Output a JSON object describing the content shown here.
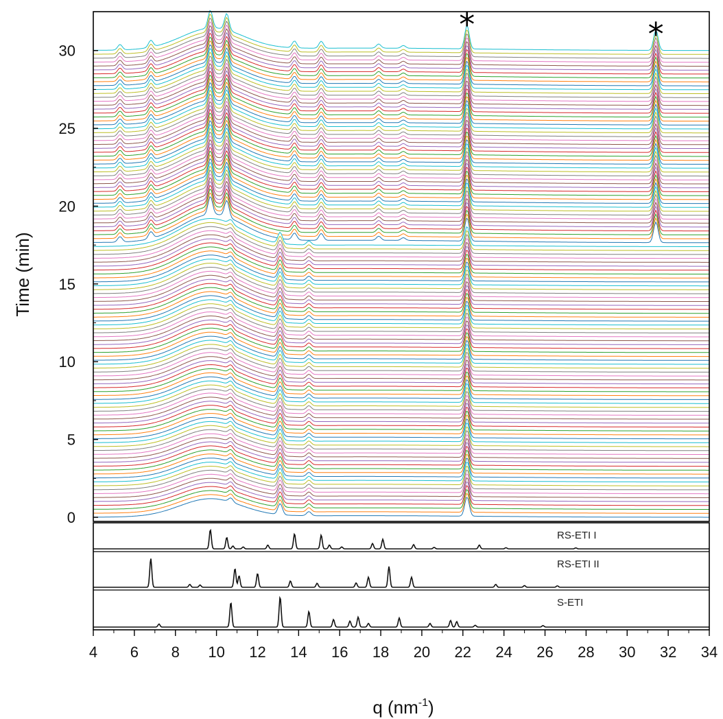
{
  "chart_data": {
    "type": "line",
    "subtype": "waterfall time-resolved diffraction patterns with reference patterns",
    "xlabel": "q (nm",
    "xlabel_superscript": "-1",
    "xlabel_suffix": ")",
    "ylabel": "Time (min)",
    "xlim": [
      4,
      34
    ],
    "ylim": [
      0,
      32.5
    ],
    "xticks": [
      4,
      6,
      8,
      10,
      12,
      14,
      16,
      18,
      20,
      22,
      24,
      26,
      28,
      30,
      32,
      34
    ],
    "yticks": [
      0,
      5,
      10,
      15,
      20,
      25,
      30
    ],
    "grid": false,
    "annotations": [
      {
        "text": "*",
        "q": 22.2
      },
      {
        "text": "*",
        "q": 31.4
      }
    ],
    "trace_colors": [
      "#1f77b4",
      "#ff7f0e",
      "#2ca02c",
      "#d62728",
      "#9467bd",
      "#8c564b",
      "#e377c2",
      "#7f7f7f",
      "#bcbd22",
      "#17becf"
    ],
    "waterfall": {
      "time_start": 0,
      "time_end": 30,
      "trace_count": 120,
      "transition_time": 17.5,
      "phase_before": {
        "halo_center_q": 9.7,
        "peaks_q": [
          10.7,
          13.1,
          14.5,
          22.2
        ]
      },
      "phase_after": {
        "halo_center_q": 9.8,
        "peaks_q": [
          5.3,
          6.8,
          9.7,
          10.5,
          13.8,
          15.1,
          17.9,
          19.1,
          22.2,
          31.4
        ]
      }
    },
    "reference_patterns": [
      {
        "name": "RS-ETI I",
        "peaks": [
          {
            "q": 9.7,
            "intensity": 1.0
          },
          {
            "q": 10.5,
            "intensity": 0.6
          },
          {
            "q": 10.8,
            "intensity": 0.15
          },
          {
            "q": 11.3,
            "intensity": 0.1
          },
          {
            "q": 12.5,
            "intensity": 0.2
          },
          {
            "q": 13.8,
            "intensity": 0.78
          },
          {
            "q": 15.1,
            "intensity": 0.72
          },
          {
            "q": 15.5,
            "intensity": 0.2
          },
          {
            "q": 16.1,
            "intensity": 0.1
          },
          {
            "q": 17.6,
            "intensity": 0.28
          },
          {
            "q": 18.1,
            "intensity": 0.5
          },
          {
            "q": 19.6,
            "intensity": 0.22
          },
          {
            "q": 20.6,
            "intensity": 0.08
          },
          {
            "q": 22.8,
            "intensity": 0.2
          },
          {
            "q": 24.1,
            "intensity": 0.06
          },
          {
            "q": 27.5,
            "intensity": 0.05
          }
        ]
      },
      {
        "name": "RS-ETI II",
        "peaks": [
          {
            "q": 6.8,
            "intensity": 1.0
          },
          {
            "q": 8.7,
            "intensity": 0.1
          },
          {
            "q": 9.2,
            "intensity": 0.08
          },
          {
            "q": 10.9,
            "intensity": 0.65
          },
          {
            "q": 11.1,
            "intensity": 0.4
          },
          {
            "q": 12.0,
            "intensity": 0.48
          },
          {
            "q": 13.6,
            "intensity": 0.22
          },
          {
            "q": 14.9,
            "intensity": 0.14
          },
          {
            "q": 16.8,
            "intensity": 0.15
          },
          {
            "q": 17.4,
            "intensity": 0.35
          },
          {
            "q": 18.4,
            "intensity": 0.72
          },
          {
            "q": 19.5,
            "intensity": 0.35
          },
          {
            "q": 23.6,
            "intensity": 0.1
          },
          {
            "q": 25.0,
            "intensity": 0.06
          },
          {
            "q": 26.6,
            "intensity": 0.05
          }
        ]
      },
      {
        "name": "S-ETI",
        "peaks": [
          {
            "q": 7.2,
            "intensity": 0.1
          },
          {
            "q": 10.7,
            "intensity": 0.82
          },
          {
            "q": 13.1,
            "intensity": 1.0
          },
          {
            "q": 14.5,
            "intensity": 0.52
          },
          {
            "q": 15.7,
            "intensity": 0.25
          },
          {
            "q": 16.5,
            "intensity": 0.2
          },
          {
            "q": 16.9,
            "intensity": 0.33
          },
          {
            "q": 17.4,
            "intensity": 0.12
          },
          {
            "q": 18.9,
            "intensity": 0.3
          },
          {
            "q": 20.4,
            "intensity": 0.12
          },
          {
            "q": 21.4,
            "intensity": 0.22
          },
          {
            "q": 21.7,
            "intensity": 0.18
          },
          {
            "q": 22.6,
            "intensity": 0.06
          },
          {
            "q": 25.9,
            "intensity": 0.05
          }
        ]
      }
    ]
  }
}
